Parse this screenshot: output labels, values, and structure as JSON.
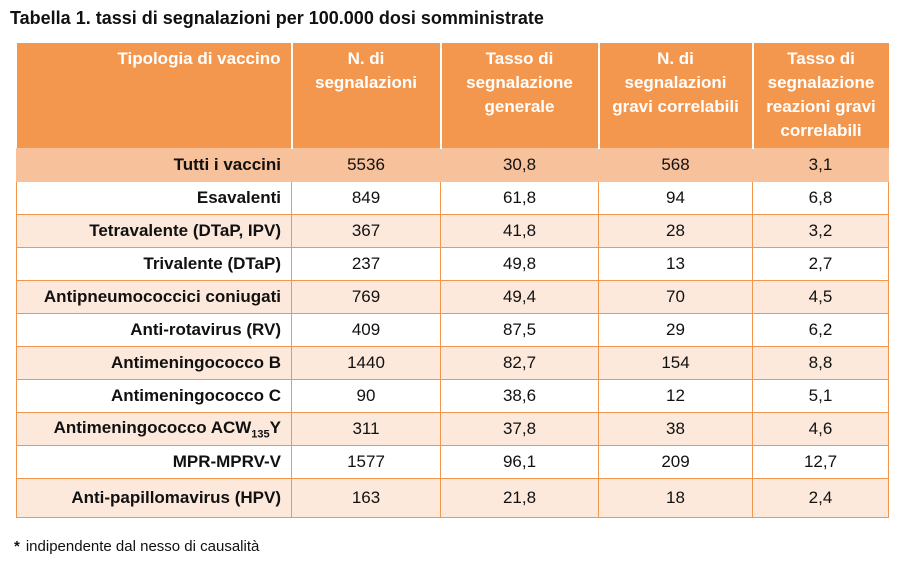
{
  "title": "Tabella 1. tassi di segnalazioni per 100.000 dosi somministrate",
  "colors": {
    "header": "#f3974e",
    "total_row": "#f7c19c",
    "shaded_row": "#fce9dc"
  },
  "headers": [
    "Tipologia di vaccino",
    "N. di segnalazioni",
    "Tasso di segnalazione generale",
    "N. di segnalazioni gravi correlabili",
    "Tasso di segnalazione reazioni gravi correlabili"
  ],
  "rows": [
    {
      "name": "Tutti i vaccini",
      "n": "5536",
      "tasso": "30,8",
      "gravi": "568",
      "tasso_gravi": "3,1"
    },
    {
      "name": "Esavalenti",
      "n": "849",
      "tasso": "61,8",
      "gravi": "94",
      "tasso_gravi": "6,8"
    },
    {
      "name": "Tetravalente (DTaP, IPV)",
      "n": "367",
      "tasso": "41,8",
      "gravi": "28",
      "tasso_gravi": "3,2"
    },
    {
      "name": "Trivalente (DTaP)",
      "n": "237",
      "tasso": "49,8",
      "gravi": "13",
      "tasso_gravi": "2,7"
    },
    {
      "name": "Antipneumococcici coniugati",
      "n": "769",
      "tasso": "49,4",
      "gravi": "70",
      "tasso_gravi": "4,5"
    },
    {
      "name": "Anti-rotavirus (RV)",
      "n": "409",
      "tasso": "87,5",
      "gravi": "29",
      "tasso_gravi": "6,2"
    },
    {
      "name": "Antimeningococco B",
      "n": "1440",
      "tasso": "82,7",
      "gravi": "154",
      "tasso_gravi": "8,8"
    },
    {
      "name": "Antimeningococco C",
      "n": "90",
      "tasso": "38,6",
      "gravi": "12",
      "tasso_gravi": "5,1"
    },
    {
      "name_main": "Antimeningococco ACW",
      "name_sub": "135",
      "name_tail": "Y",
      "n": "311",
      "tasso": "37,8",
      "gravi": "38",
      "tasso_gravi": "4,6"
    },
    {
      "name": "MPR-MPRV-V",
      "n": "1577",
      "tasso": "96,1",
      "gravi": "209",
      "tasso_gravi": "12,7"
    },
    {
      "name": "Anti-papillomavirus (HPV)",
      "n": "163",
      "tasso": "21,8",
      "gravi": "18",
      "tasso_gravi": "2,4"
    }
  ],
  "footnote": {
    "mark": "*",
    "text": "indipendente dal nesso di causalità"
  }
}
